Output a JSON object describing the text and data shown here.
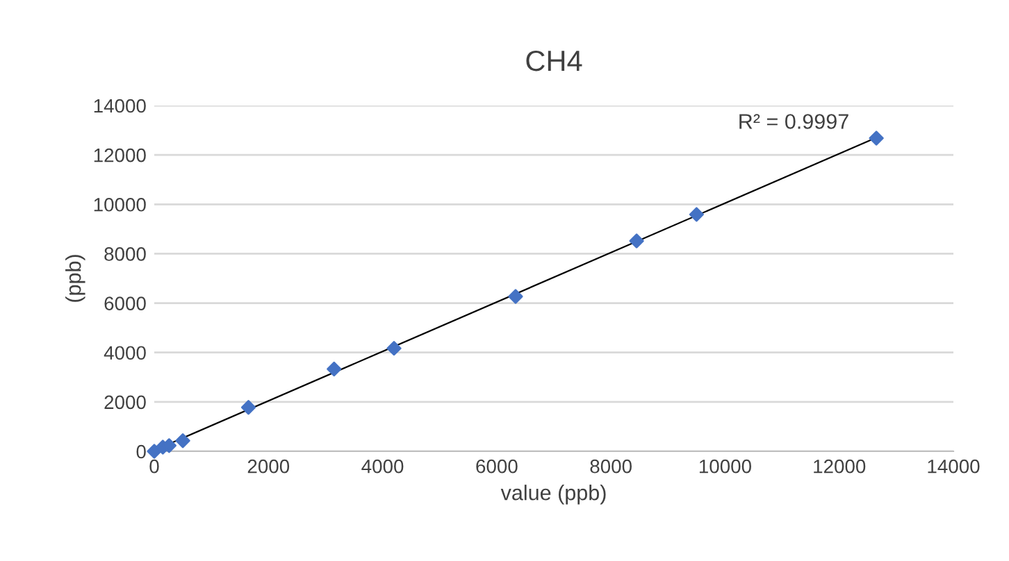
{
  "chart_data": {
    "type": "scatter",
    "title": "CH4",
    "xlabel": "value (ppb)",
    "ylabel": "(ppb)",
    "xlim": [
      0,
      14000
    ],
    "xticks": [
      0,
      2000,
      4000,
      6000,
      8000,
      10000,
      12000,
      14000
    ],
    "ylim": [
      0,
      14000
    ],
    "yticks": [
      0,
      2000,
      4000,
      6000,
      8000,
      10000,
      12000,
      14000
    ],
    "grid": "y",
    "series": [
      {
        "color": "#4472c4",
        "marker": "diamond",
        "x": [
          0,
          150,
          260,
          500,
          1650,
          3150,
          4200,
          6330,
          8450,
          9500,
          12650
        ],
        "values": [
          0,
          170,
          230,
          430,
          1780,
          3330,
          4170,
          6270,
          8520,
          9590,
          12680
        ]
      },
      {
        "type": "line",
        "marker": "none",
        "color": "#000000",
        "x": [
          0,
          12650
        ],
        "values": [
          40,
          12700
        ]
      }
    ],
    "annotations": [
      "R² = 0.9997"
    ]
  }
}
